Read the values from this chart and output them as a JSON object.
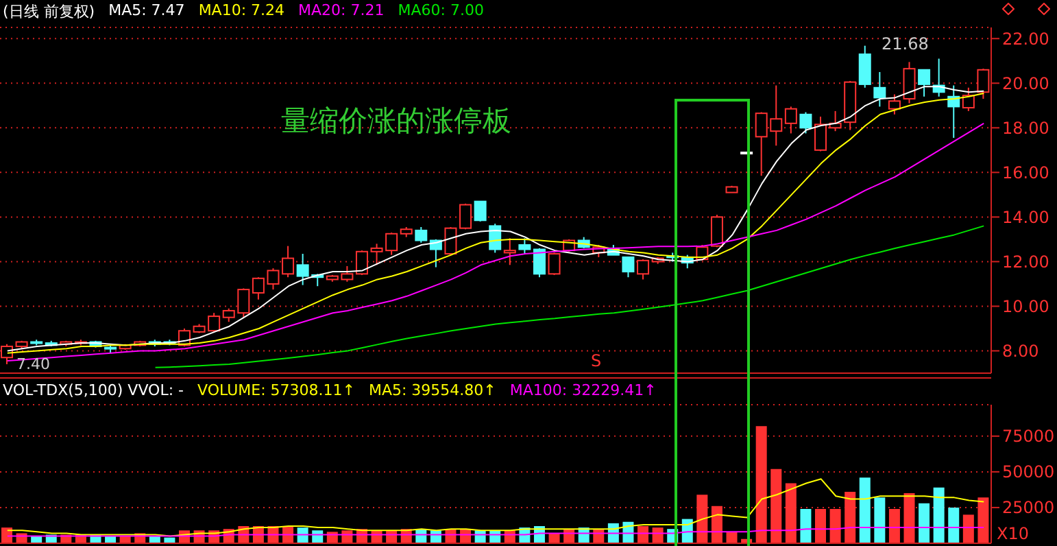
{
  "chart_data": [
    {
      "type": "candlestick",
      "title": "(日线 前复权)",
      "categories": [
        null,
        null,
        null,
        null,
        null,
        null,
        null,
        null,
        null,
        null,
        null,
        null,
        null,
        null,
        null,
        null,
        null,
        null,
        null,
        null,
        null,
        null,
        null,
        null,
        null,
        null,
        null,
        null,
        null,
        null,
        null,
        null,
        null,
        null,
        null,
        null,
        null,
        null,
        null,
        null,
        null,
        null,
        null,
        null,
        null,
        null,
        null,
        null,
        null,
        null,
        null,
        null,
        null,
        null,
        null,
        null,
        null,
        null,
        null,
        null,
        null,
        null,
        null,
        null,
        null,
        null,
        null
      ],
      "ohlc": [
        [
          7.7,
          8.3,
          7.4,
          8.2
        ],
        [
          8.2,
          8.45,
          8.1,
          8.4
        ],
        [
          8.4,
          8.5,
          8.25,
          8.35
        ],
        [
          8.35,
          8.45,
          8.2,
          8.25
        ],
        [
          8.3,
          8.45,
          8.2,
          8.4
        ],
        [
          8.35,
          8.5,
          8.25,
          8.4
        ],
        [
          8.4,
          8.45,
          8.15,
          8.2
        ],
        [
          8.15,
          8.25,
          7.9,
          8.1
        ],
        [
          8.1,
          8.3,
          8.05,
          8.25
        ],
        [
          8.25,
          8.45,
          8.2,
          8.4
        ],
        [
          8.4,
          8.5,
          8.2,
          8.3
        ],
        [
          8.4,
          8.5,
          8.25,
          8.35
        ],
        [
          8.25,
          9.0,
          8.2,
          8.9
        ],
        [
          8.85,
          9.2,
          8.8,
          9.1
        ],
        [
          8.9,
          9.7,
          8.85,
          9.55
        ],
        [
          9.5,
          9.9,
          9.3,
          9.8
        ],
        [
          9.7,
          10.8,
          9.5,
          10.75
        ],
        [
          10.6,
          11.3,
          10.3,
          11.25
        ],
        [
          11.0,
          11.7,
          10.75,
          11.6
        ],
        [
          11.45,
          12.7,
          11.3,
          12.15
        ],
        [
          11.85,
          12.35,
          10.95,
          11.35
        ],
        [
          11.4,
          11.45,
          10.9,
          11.3
        ],
        [
          11.2,
          11.4,
          11.1,
          11.35
        ],
        [
          11.2,
          11.8,
          11.1,
          11.45
        ],
        [
          11.45,
          12.5,
          11.4,
          12.45
        ],
        [
          12.45,
          12.8,
          11.85,
          12.6
        ],
        [
          12.5,
          13.3,
          12.3,
          13.25
        ],
        [
          13.25,
          13.55,
          13.1,
          13.45
        ],
        [
          13.4,
          13.55,
          12.85,
          12.95
        ],
        [
          12.95,
          13.0,
          11.75,
          12.55
        ],
        [
          12.35,
          13.55,
          12.3,
          13.5
        ],
        [
          13.5,
          14.6,
          13.45,
          14.55
        ],
        [
          14.7,
          14.7,
          13.8,
          13.85
        ],
        [
          13.6,
          13.7,
          12.4,
          12.55
        ],
        [
          12.4,
          13.05,
          11.85,
          12.5
        ],
        [
          12.75,
          13.05,
          12.35,
          12.55
        ],
        [
          12.55,
          12.6,
          11.3,
          11.45
        ],
        [
          11.45,
          12.4,
          11.4,
          12.35
        ],
        [
          12.5,
          13.0,
          12.45,
          12.95
        ],
        [
          12.95,
          13.1,
          12.6,
          12.65
        ],
        [
          12.4,
          12.75,
          12.2,
          12.65
        ],
        [
          12.6,
          12.75,
          12.3,
          12.3
        ],
        [
          12.2,
          12.2,
          11.3,
          11.55
        ],
        [
          11.45,
          12.1,
          11.2,
          12.05
        ],
        [
          12.0,
          12.2,
          11.9,
          12.15
        ],
        [
          12.25,
          12.4,
          12.0,
          12.2
        ],
        [
          12.2,
          12.3,
          11.7,
          11.95
        ],
        [
          12.1,
          12.75,
          12.05,
          12.65
        ],
        [
          12.7,
          14.1,
          12.65,
          14.0
        ],
        [
          15.1,
          15.4,
          15.1,
          15.35
        ],
        [
          16.9,
          16.9,
          16.9,
          16.9
        ],
        [
          17.6,
          18.7,
          15.85,
          18.65
        ],
        [
          17.85,
          19.9,
          17.2,
          18.4
        ],
        [
          18.2,
          18.95,
          17.75,
          18.85
        ],
        [
          18.6,
          18.7,
          17.75,
          18.0
        ],
        [
          17.0,
          18.5,
          16.95,
          18.15
        ],
        [
          18.0,
          18.75,
          17.85,
          18.2
        ],
        [
          18.25,
          20.1,
          17.9,
          20.05
        ],
        [
          21.3,
          21.68,
          19.8,
          19.95
        ],
        [
          19.8,
          20.5,
          18.95,
          19.35
        ],
        [
          18.85,
          19.5,
          18.6,
          19.2
        ],
        [
          19.3,
          20.95,
          19.1,
          20.65
        ],
        [
          20.6,
          20.6,
          19.4,
          19.95
        ],
        [
          19.9,
          21.1,
          19.4,
          19.6
        ],
        [
          19.4,
          19.9,
          17.55,
          18.95
        ],
        [
          18.9,
          19.8,
          18.75,
          19.45
        ],
        [
          19.6,
          20.65,
          19.3,
          20.6
        ]
      ],
      "colors": [
        "#ff3232",
        "#ff3232",
        "#54fcfc",
        "#54fcfc",
        "#ff3232",
        "#ff3232",
        "#54fcfc",
        "#54fcfc",
        "#ff3232",
        "#ff3232",
        "#54fcfc",
        "#54fcfc",
        "#ff3232",
        "#ff3232",
        "#ff3232",
        "#ff3232",
        "#ff3232",
        "#ff3232",
        "#ff3232",
        "#ff3232",
        "#54fcfc",
        "#54fcfc",
        "#ff3232",
        "#ff3232",
        "#ff3232",
        "#ff3232",
        "#ff3232",
        "#ff3232",
        "#54fcfc",
        "#54fcfc",
        "#ff3232",
        "#ff3232",
        "#54fcfc",
        "#54fcfc",
        "#ff3232",
        "#54fcfc",
        "#54fcfc",
        "#ff3232",
        "#ff3232",
        "#54fcfc",
        "#ff3232",
        "#54fcfc",
        "#54fcfc",
        "#ff3232",
        "#ff3232",
        "#54fcfc",
        "#54fcfc",
        "#ff3232",
        "#ff3232",
        "#ff3232",
        "#ffffff",
        "#ff3232",
        "#ff3232",
        "#ff3232",
        "#54fcfc",
        "#ff3232",
        "#ff3232",
        "#ff3232",
        "#54fcfc",
        "#54fcfc",
        "#ff3232",
        "#ff3232",
        "#54fcfc",
        "#54fcfc",
        "#54fcfc",
        "#ff3232",
        "#ff3232"
      ],
      "series": [
        {
          "name": "MA5: 7.47",
          "type": "line",
          "color": "#ffffff",
          "values": [
            8.0,
            8.1,
            8.2,
            8.25,
            8.3,
            8.35,
            8.35,
            8.3,
            8.25,
            8.3,
            8.35,
            8.35,
            8.45,
            8.6,
            8.85,
            9.1,
            9.5,
            9.9,
            10.4,
            10.9,
            11.2,
            11.4,
            11.55,
            11.55,
            11.6,
            11.9,
            12.2,
            12.5,
            12.75,
            12.85,
            13.05,
            13.25,
            13.35,
            13.4,
            13.35,
            13.1,
            12.75,
            12.5,
            12.4,
            12.3,
            12.4,
            12.45,
            12.35,
            12.25,
            12.1,
            12.05,
            12.0,
            12.1,
            12.5,
            13.2,
            14.3,
            15.5,
            16.5,
            17.3,
            17.9,
            18.1,
            18.2,
            18.5,
            19.0,
            19.3,
            19.35,
            19.6,
            19.85,
            19.85,
            19.7,
            19.6,
            19.65
          ]
        },
        {
          "name": "MA10: 7.24",
          "type": "line",
          "color": "#ffff00",
          "values": [
            7.9,
            7.95,
            8.0,
            8.05,
            8.1,
            8.2,
            8.2,
            8.25,
            8.25,
            8.3,
            8.3,
            8.3,
            8.3,
            8.35,
            8.45,
            8.6,
            8.8,
            9.0,
            9.3,
            9.6,
            9.9,
            10.2,
            10.5,
            10.75,
            10.95,
            11.2,
            11.35,
            11.55,
            11.8,
            12.05,
            12.3,
            12.6,
            12.85,
            12.95,
            13.0,
            13.0,
            12.95,
            12.9,
            12.85,
            12.8,
            12.7,
            12.55,
            12.45,
            12.4,
            12.3,
            12.25,
            12.2,
            12.2,
            12.3,
            12.6,
            13.0,
            13.6,
            14.3,
            15.0,
            15.7,
            16.4,
            17.0,
            17.5,
            18.1,
            18.6,
            18.8,
            19.0,
            19.15,
            19.25,
            19.3,
            19.4,
            19.55
          ]
        },
        {
          "name": "MA20: 7.21",
          "type": "line",
          "color": "#ff00ff",
          "values": [
            7.55,
            7.6,
            7.65,
            7.7,
            7.75,
            7.8,
            7.85,
            7.9,
            7.95,
            8.0,
            8.0,
            8.05,
            8.1,
            8.2,
            8.3,
            8.4,
            8.5,
            8.7,
            8.9,
            9.1,
            9.3,
            9.5,
            9.7,
            9.8,
            9.95,
            10.1,
            10.25,
            10.45,
            10.7,
            10.95,
            11.2,
            11.5,
            11.85,
            12.05,
            12.25,
            12.35,
            12.4,
            12.45,
            12.5,
            12.55,
            12.58,
            12.6,
            12.62,
            12.65,
            12.68,
            12.68,
            12.68,
            12.7,
            12.8,
            12.95,
            13.1,
            13.25,
            13.4,
            13.65,
            13.9,
            14.2,
            14.5,
            14.85,
            15.2,
            15.5,
            15.8,
            16.2,
            16.6,
            17.0,
            17.4,
            17.8,
            18.2
          ]
        },
        {
          "name": "MA60: 7.00",
          "type": "line",
          "color": "#00e600",
          "values": [
            null,
            null,
            null,
            null,
            null,
            null,
            null,
            null,
            null,
            null,
            7.25,
            7.27,
            7.3,
            7.33,
            7.37,
            7.4,
            7.47,
            7.54,
            7.61,
            7.68,
            7.75,
            7.83,
            7.92,
            8.0,
            8.14,
            8.28,
            8.42,
            8.55,
            8.67,
            8.78,
            8.9,
            9.0,
            9.1,
            9.2,
            9.27,
            9.33,
            9.4,
            9.45,
            9.52,
            9.58,
            9.65,
            9.7,
            9.78,
            9.87,
            9.96,
            10.05,
            10.15,
            10.25,
            10.4,
            10.55,
            10.7,
            10.9,
            11.1,
            11.3,
            11.5,
            11.7,
            11.9,
            12.1,
            12.27,
            12.43,
            12.6,
            12.75,
            12.9,
            13.05,
            13.2,
            13.4,
            13.6
          ]
        }
      ],
      "ylim": [
        7,
        22.5
      ],
      "yticks": [
        {
          "value": 8,
          "label": "8.00"
        },
        {
          "value": 10,
          "label": "10.00"
        },
        {
          "value": 12,
          "label": "12.00"
        },
        {
          "value": 14,
          "label": "14.00"
        },
        {
          "value": 16,
          "label": "16.00"
        },
        {
          "value": 18,
          "label": "18.00"
        },
        {
          "value": 20,
          "label": "20.00"
        },
        {
          "value": 22,
          "label": "22.00"
        }
      ],
      "grid": "y",
      "legend": "top left",
      "tick_labels": "y",
      "marker": "none",
      "annotations": [
        "量缩价涨的涨停板",
        "S",
        "21.68",
        "7.40"
      ]
    },
    {
      "type": "bar",
      "title": "VOL-TDX(5,100)  VVOL: -",
      "categories": [
        null,
        null,
        null,
        null,
        null,
        null,
        null,
        null,
        null,
        null,
        null,
        null,
        null,
        null,
        null,
        null,
        null,
        null,
        null,
        null,
        null,
        null,
        null,
        null,
        null,
        null,
        null,
        null,
        null,
        null,
        null,
        null,
        null,
        null,
        null,
        null,
        null,
        null,
        null,
        null,
        null,
        null,
        null,
        null,
        null,
        null,
        null,
        null,
        null,
        null,
        null,
        null,
        null,
        null,
        null,
        null,
        null,
        null,
        null,
        null,
        null,
        null,
        null,
        null,
        null,
        null,
        null
      ],
      "series": [
        {
          "colors": [
            "#ff3232",
            "#ff3232",
            "#54fcfc",
            "#54fcfc",
            "#ff3232",
            "#ff3232",
            "#54fcfc",
            "#54fcfc",
            "#ff3232",
            "#ff3232",
            "#54fcfc",
            "#54fcfc",
            "#ff3232",
            "#ff3232",
            "#ff3232",
            "#ff3232",
            "#ff3232",
            "#ff3232",
            "#ff3232",
            "#ff3232",
            "#54fcfc",
            "#54fcfc",
            "#ff3232",
            "#ff3232",
            "#ff3232",
            "#ff3232",
            "#ff3232",
            "#ff3232",
            "#54fcfc",
            "#54fcfc",
            "#ff3232",
            "#ff3232",
            "#54fcfc",
            "#54fcfc",
            "#ff3232",
            "#54fcfc",
            "#54fcfc",
            "#ff3232",
            "#ff3232",
            "#54fcfc",
            "#ff3232",
            "#54fcfc",
            "#54fcfc",
            "#ff3232",
            "#ff3232",
            "#54fcfc",
            "#54fcfc",
            "#ff3232",
            "#ff3232",
            "#ff3232",
            "#ff3232",
            "#ff3232",
            "#ff3232",
            "#ff3232",
            "#54fcfc",
            "#ff3232",
            "#ff3232",
            "#ff3232",
            "#54fcfc",
            "#54fcfc",
            "#ff3232",
            "#ff3232",
            "#54fcfc",
            "#54fcfc",
            "#54fcfc",
            "#ff3232",
            "#ff3232"
          ],
          "values": [
            11000,
            7000,
            5000,
            6000,
            6000,
            6000,
            6000,
            5000,
            5000,
            7000,
            5000,
            4000,
            9000,
            9000,
            9000,
            10000,
            12000,
            12000,
            12000,
            12000,
            11000,
            9000,
            8000,
            9000,
            10000,
            9000,
            9000,
            10000,
            10000,
            9000,
            10000,
            10000,
            9000,
            9000,
            9000,
            11000,
            12000,
            7000,
            10000,
            11000,
            10000,
            14000,
            15000,
            12000,
            11000,
            10000,
            17000,
            34000,
            26000,
            8000,
            3000,
            82000,
            52000,
            42000,
            24000,
            24000,
            24000,
            36000,
            46000,
            32000,
            24000,
            35000,
            28000,
            39000,
            25000,
            20000,
            32000
          ]
        },
        {
          "name": "MA5: 39554.80↑",
          "type": "line",
          "color": "#ffff00",
          "values": [
            9000,
            9000,
            8000,
            7000,
            7000,
            6000,
            6000,
            6000,
            6000,
            6000,
            6000,
            5000,
            6000,
            7000,
            7000,
            8000,
            10000,
            11000,
            11000,
            12000,
            12000,
            11000,
            11000,
            10000,
            9000,
            9000,
            9000,
            9000,
            10000,
            9000,
            10000,
            10000,
            9000,
            9000,
            9000,
            10000,
            10000,
            10000,
            10000,
            10000,
            10000,
            10000,
            12000,
            13000,
            13000,
            13000,
            13000,
            17000,
            20000,
            19000,
            18000,
            31000,
            34000,
            38000,
            42000,
            45000,
            33000,
            31000,
            31000,
            33000,
            33000,
            33000,
            33000,
            32000,
            32000,
            30000,
            29000
          ]
        },
        {
          "name": "MA100: 32229.41↑",
          "type": "line",
          "color": "#ff00ff",
          "values": [
            5000,
            5000,
            5000,
            5000,
            5000,
            5000,
            5000,
            5000,
            5000,
            5000,
            5000,
            5000,
            5000,
            5000,
            5000,
            6000,
            6000,
            6000,
            6000,
            6000,
            6000,
            6000,
            6000,
            6000,
            6000,
            6000,
            6000,
            6000,
            6000,
            6000,
            6000,
            6000,
            6000,
            6000,
            6000,
            6000,
            7000,
            7000,
            7000,
            7000,
            7000,
            7000,
            7000,
            7000,
            7000,
            7000,
            8000,
            8000,
            8000,
            8000,
            8000,
            9000,
            9000,
            9000,
            10000,
            10000,
            10000,
            11000,
            11000,
            11000,
            11000,
            11000,
            11000,
            11000,
            11000,
            11000,
            11000
          ]
        }
      ],
      "ylim": [
        0,
        97000
      ],
      "yticks": [
        25000,
        50000,
        75000
      ],
      "grid": "y",
      "legend": "top left",
      "tick_labels": "y",
      "marker": "none",
      "annotations": [
        "VOLUME: 57308.11↑",
        "X10"
      ]
    }
  ]
}
